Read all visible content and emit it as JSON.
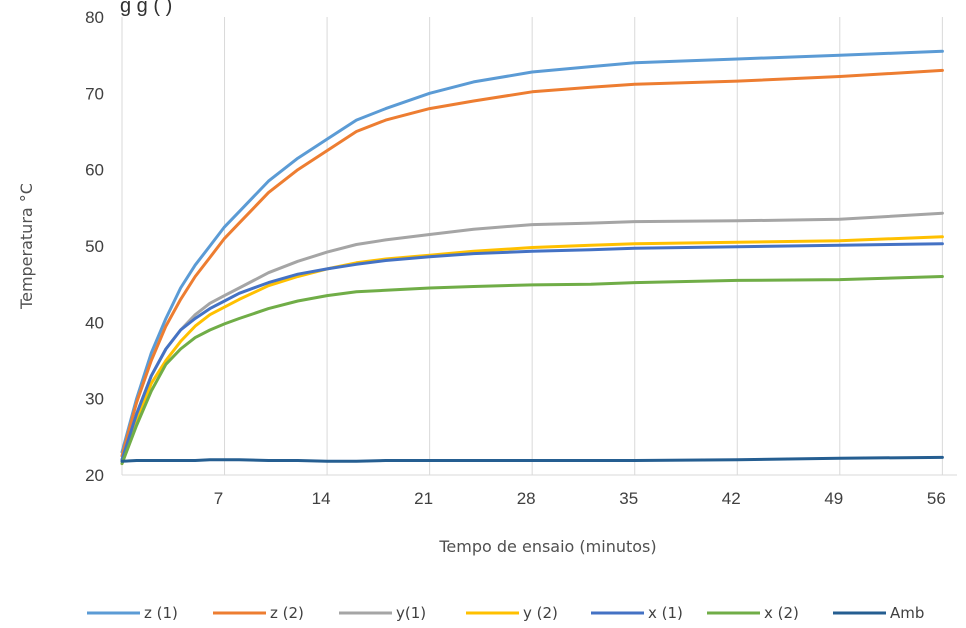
{
  "chart_data": {
    "type": "line",
    "title": "",
    "title_fragment": "g   g             (                         )",
    "xlabel": "Tempo de ensaio (minutos)",
    "ylabel": "Temperatura °C",
    "xlim": [
      0,
      57
    ],
    "ylim": [
      20,
      80
    ],
    "xticks": [
      7,
      14,
      21,
      28,
      35,
      42,
      49,
      56
    ],
    "xtick_labels": [
      "7",
      "14",
      "21",
      "28",
      "35",
      "42",
      "49",
      "56"
    ],
    "yticks": [
      20,
      30,
      40,
      50,
      60,
      70,
      80
    ],
    "ytick_labels": [
      "20",
      "30",
      "40",
      "50",
      "60",
      "70",
      "80"
    ],
    "grid": "vertical",
    "legend_position": "bottom",
    "x": [
      0,
      1,
      2,
      3,
      4,
      5,
      6,
      7,
      8,
      10,
      12,
      14,
      16,
      18,
      21,
      24,
      28,
      32,
      35,
      42,
      49,
      56
    ],
    "series": [
      {
        "name": "z (1)",
        "color": "#5B9BD5",
        "values": [
          23,
          30,
          36,
          40.5,
          44.5,
          47.5,
          50,
          52.5,
          54.5,
          58.5,
          61.5,
          64,
          66.5,
          68,
          70,
          71.5,
          72.8,
          73.5,
          74,
          74.5,
          75,
          75.5
        ]
      },
      {
        "name": "z (2)",
        "color": "#ED7D31",
        "values": [
          22.5,
          29.5,
          35,
          39.5,
          43,
          46,
          48.5,
          51,
          53,
          57,
          60,
          62.5,
          65,
          66.5,
          68,
          69,
          70.2,
          70.8,
          71.2,
          71.6,
          72.2,
          73
        ]
      },
      {
        "name": "y(1)",
        "color": "#A5A5A5",
        "values": [
          22,
          28,
          33,
          36.5,
          39,
          41,
          42.5,
          43.5,
          44.5,
          46.5,
          48,
          49.2,
          50.2,
          50.8,
          51.5,
          52.2,
          52.8,
          53,
          53.2,
          53.3,
          53.5,
          54.3
        ]
      },
      {
        "name": "y (2)",
        "color": "#FFC000",
        "values": [
          21.5,
          27,
          32,
          35,
          37.5,
          39.5,
          41,
          42,
          43,
          44.8,
          46,
          47,
          47.8,
          48.3,
          48.8,
          49.3,
          49.8,
          50.1,
          50.3,
          50.5,
          50.7,
          51.2
        ]
      },
      {
        "name": "x (1)",
        "color": "#4472C4",
        "values": [
          22,
          28,
          33,
          36.5,
          39,
          40.5,
          41.8,
          42.8,
          43.8,
          45.2,
          46.3,
          47,
          47.6,
          48.1,
          48.6,
          49,
          49.3,
          49.5,
          49.7,
          49.9,
          50.1,
          50.3
        ]
      },
      {
        "name": "x (2)",
        "color": "#70AD47",
        "values": [
          21.5,
          26.5,
          31,
          34.5,
          36.5,
          38,
          39,
          39.8,
          40.5,
          41.8,
          42.8,
          43.5,
          44,
          44.2,
          44.5,
          44.7,
          44.9,
          45,
          45.2,
          45.5,
          45.6,
          46
        ]
      },
      {
        "name": "Amb",
        "color": "#255E91",
        "values": [
          21.8,
          21.9,
          21.9,
          21.9,
          21.9,
          21.9,
          22,
          22,
          22,
          21.9,
          21.9,
          21.8,
          21.8,
          21.9,
          21.9,
          21.9,
          21.9,
          21.9,
          21.9,
          22,
          22.2,
          22.3
        ]
      }
    ]
  }
}
